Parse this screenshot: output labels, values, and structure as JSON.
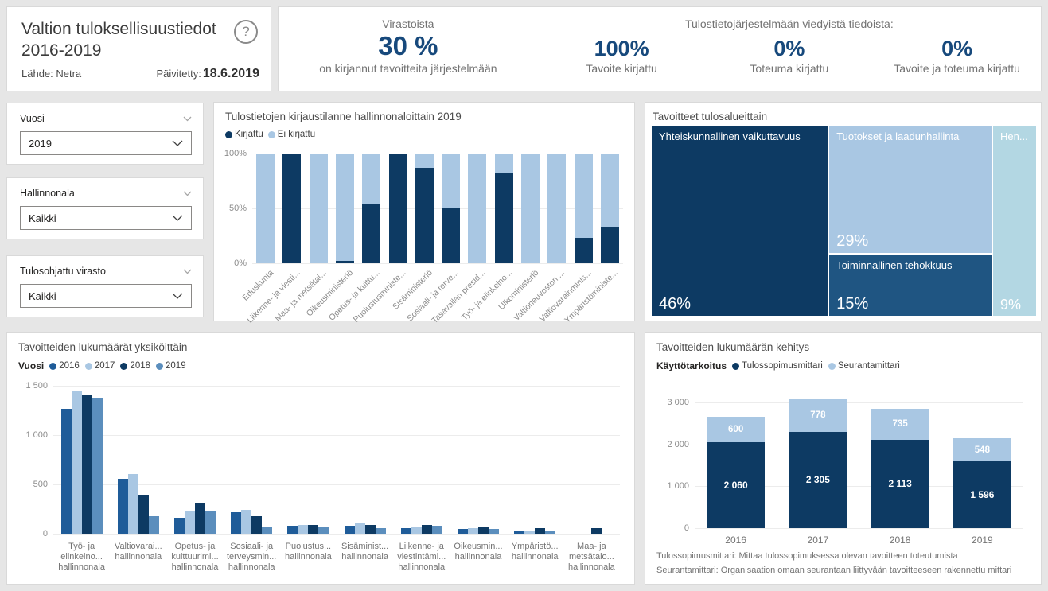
{
  "header": {
    "title_line1": "Valtion tuloksellisuustiedot",
    "title_line2": "2016-2019",
    "help_glyph": "?",
    "source": "Lähde: Netra",
    "updated_label": "Päivitetty:",
    "updated_value": "18.6.2019"
  },
  "kpi_banner": {
    "virastoista": {
      "title": "Virastoista",
      "value": "30 %",
      "subtitle": "on kirjannut tavoitteita järjestelmään"
    },
    "tulostieto": {
      "title": "Tulostietojärjestelmään viedyistä tiedoista:",
      "items": [
        {
          "value": "100%",
          "label": "Tavoite kirjattu"
        },
        {
          "value": "0%",
          "label": "Toteuma kirjattu"
        },
        {
          "value": "0%",
          "label": "Tavoite ja toteuma kirjattu"
        }
      ]
    }
  },
  "slicers": [
    {
      "title": "Vuosi",
      "value": "2019"
    },
    {
      "title": "Hallinnonala",
      "value": "Kaikki"
    },
    {
      "title": "Tulosohjattu virasto",
      "value": "Kaikki"
    }
  ],
  "colors": {
    "page_bg": "#e6e6e6",
    "dark_navy": "#0d3a63",
    "light_blue": "#a9c7e3",
    "mid_blue_2016": "#1f5c99",
    "steel_blue_2019": "#5b8ebd",
    "treemap_mid_navy": "#1f5582",
    "treemap_pale": "#b3d7e3",
    "kpi_value": "#17497c"
  },
  "chart_data": [
    {
      "id": "kirjaustilanne",
      "type": "bar",
      "subtype": "stacked-100",
      "title": "Tulostietojen kirjaustilanne hallinnonaloittain 2019",
      "legend_position": "top",
      "grid": true,
      "yticks": [
        "100%",
        "50%",
        "0%"
      ],
      "ylim": [
        0,
        100
      ],
      "categories": [
        "Eduskunta",
        "Liikenne- ja viesti...",
        "Maa- ja metsätal...",
        "Oikeusministeriö",
        "Opetus- ja kulttu...",
        "Puolustusministe...",
        "Sisäministeriö",
        "Sosiaali- ja terve...",
        "Tasavallan presid...",
        "Työ- ja elinkeino...",
        "Ulkoministeriö",
        "Valtioneuvoston ...",
        "Valtiovarainminis...",
        "Ympäristöministe..."
      ],
      "series": [
        {
          "name": "Kirjattu",
          "color": "#0d3a63",
          "values": [
            0,
            100,
            0,
            2,
            54,
            100,
            87,
            50,
            0,
            82,
            0,
            0,
            23,
            33
          ]
        },
        {
          "name": "Ei kirjattu",
          "color": "#a9c7e3",
          "values": [
            100,
            0,
            100,
            98,
            46,
            0,
            13,
            50,
            100,
            18,
            100,
            100,
            77,
            67
          ]
        }
      ]
    },
    {
      "id": "tavoitteet-tulosalueittain",
      "type": "treemap",
      "title": "Tavoitteet tulosalueittain",
      "tiles": [
        {
          "label": "Yhteiskunnallinen vaikuttavuus",
          "pct": "46%",
          "value": 46,
          "color": "#0d3a63"
        },
        {
          "label": "Tuotokset ja laadunhallinta",
          "pct": "29%",
          "value": 29,
          "color": "#a9c7e3"
        },
        {
          "label": "Toiminnallinen tehokkuus",
          "pct": "15%",
          "value": 15,
          "color": "#1f5582"
        },
        {
          "label": "Hen...",
          "pct": "9%",
          "value": 9,
          "color": "#b3d7e3"
        }
      ]
    },
    {
      "id": "lukumaarat-yksikoittain",
      "type": "bar",
      "subtype": "grouped",
      "title": "Tavoitteiden lukumäärät yksiköittäin",
      "legend_title": "Vuosi",
      "grid": true,
      "yticks": [
        "1 500",
        "1 000",
        "500",
        "0"
      ],
      "ylim": [
        0,
        1500
      ],
      "categories": [
        [
          "Työ- ja",
          "elinkeino...",
          "hallinnonala"
        ],
        [
          "Valtiovarai...",
          "hallinnonala"
        ],
        [
          "Opetus- ja",
          "kulttuurimi...",
          "hallinnonala"
        ],
        [
          "Sosiaali- ja",
          "terveysmin...",
          "hallinnonala"
        ],
        [
          "Puolustus...",
          "hallinnonala"
        ],
        [
          "Sisäminist...",
          "hallinnonala"
        ],
        [
          "Liikenne- ja",
          "viestintämi...",
          "hallinnonala"
        ],
        [
          "Oikeusmin...",
          "hallinnonala"
        ],
        [
          "Ympäristö...",
          "hallinnonala"
        ],
        [
          "Maa- ja",
          "metsätalo...",
          "hallinnonala"
        ]
      ],
      "series": [
        {
          "name": "2016",
          "color": "#1f5c99",
          "values": [
            1270,
            555,
            165,
            215,
            80,
            80,
            55,
            50,
            35,
            0
          ]
        },
        {
          "name": "2017",
          "color": "#a9c7e3",
          "values": [
            1440,
            605,
            225,
            240,
            85,
            110,
            70,
            55,
            30,
            0
          ]
        },
        {
          "name": "2018",
          "color": "#0d3a63",
          "values": [
            1415,
            395,
            315,
            175,
            85,
            90,
            85,
            65,
            55,
            60
          ]
        },
        {
          "name": "2019",
          "color": "#5b8ebd",
          "values": [
            1380,
            175,
            225,
            70,
            75,
            60,
            80,
            45,
            35,
            0
          ]
        }
      ]
    },
    {
      "id": "lukumaaran-kehitys",
      "type": "bar",
      "subtype": "stacked",
      "title": "Tavoitteiden lukumäärän kehitys",
      "legend_title": "Käyttötarkoitus",
      "grid": true,
      "yticks": [
        "3 000",
        "2 000",
        "1 000",
        "0"
      ],
      "ylim": [
        0,
        3000
      ],
      "categories": [
        "2016",
        "2017",
        "2018",
        "2019"
      ],
      "series": [
        {
          "name": "Tulossopimusmittari",
          "color": "#0d3a63",
          "values": [
            2060,
            2305,
            2113,
            1596
          ],
          "labels": [
            "2 060",
            "2 305",
            "2 113",
            "1 596"
          ]
        },
        {
          "name": "Seurantamittari",
          "color": "#a9c7e3",
          "values": [
            600,
            778,
            735,
            548
          ],
          "labels": [
            "600",
            "778",
            "735",
            "548"
          ]
        }
      ],
      "footnotes": [
        "Tulossopimusmittari: Mittaa tulossopimuksessa olevan tavoitteen toteutumista",
        "Seurantamittari: Organisaation omaan seurantaan liittyvään tavoitteeseen rakennettu mittari"
      ]
    }
  ]
}
